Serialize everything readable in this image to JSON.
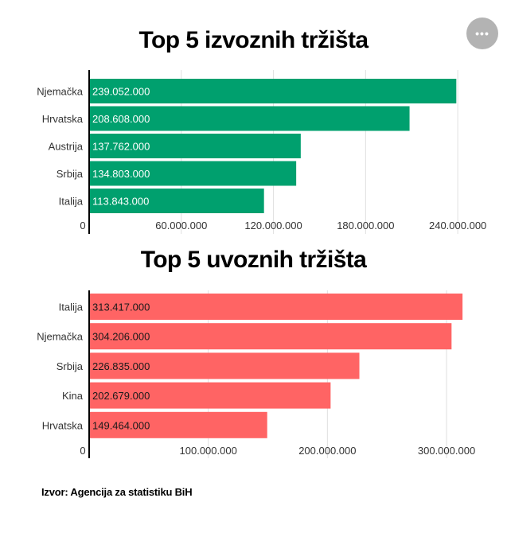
{
  "menu": {
    "icon": "more-horizontal-icon",
    "label": "•••"
  },
  "source": "Izvor: Agencija za statistiku BiH",
  "chart_data": [
    {
      "type": "bar",
      "orientation": "horizontal",
      "title": "Top 5 izvoznih tržišta",
      "categories": [
        "Njemačka",
        "Hrvatska",
        "Austrija",
        "Srbija",
        "Italija"
      ],
      "values": [
        239052000,
        208608000,
        137762000,
        134803000,
        113843000
      ],
      "value_labels": [
        "239.052.000",
        "208.608.000",
        "137.762.000",
        "134.803.000",
        "113.843.000"
      ],
      "x_ticks": [
        0,
        60000000,
        120000000,
        180000000,
        240000000
      ],
      "x_tick_labels": [
        "0",
        "60.000.000",
        "120.000.000",
        "180.000.000",
        "240.000.000"
      ],
      "xlim": [
        0,
        242000000
      ],
      "color": "#00a06e",
      "label_color": "#ffffff",
      "grid": true
    },
    {
      "type": "bar",
      "orientation": "horizontal",
      "title": "Top 5 uvoznih tržišta",
      "categories": [
        "Italija",
        "Njemačka",
        "Srbija",
        "Kina",
        "Hrvatska"
      ],
      "values": [
        313417000,
        304206000,
        226835000,
        202679000,
        149464000
      ],
      "value_labels": [
        "313.417.000",
        "304.206.000",
        "226.835.000",
        "202.679.000",
        "149.464.000"
      ],
      "x_ticks": [
        0,
        100000000,
        200000000,
        300000000
      ],
      "x_tick_labels": [
        "0",
        "100.000.000",
        "200.000.000",
        "300.000.000"
      ],
      "xlim": [
        0,
        312000000
      ],
      "color": "#ff6464",
      "label_color": "#1a1a1a",
      "grid": true
    }
  ]
}
